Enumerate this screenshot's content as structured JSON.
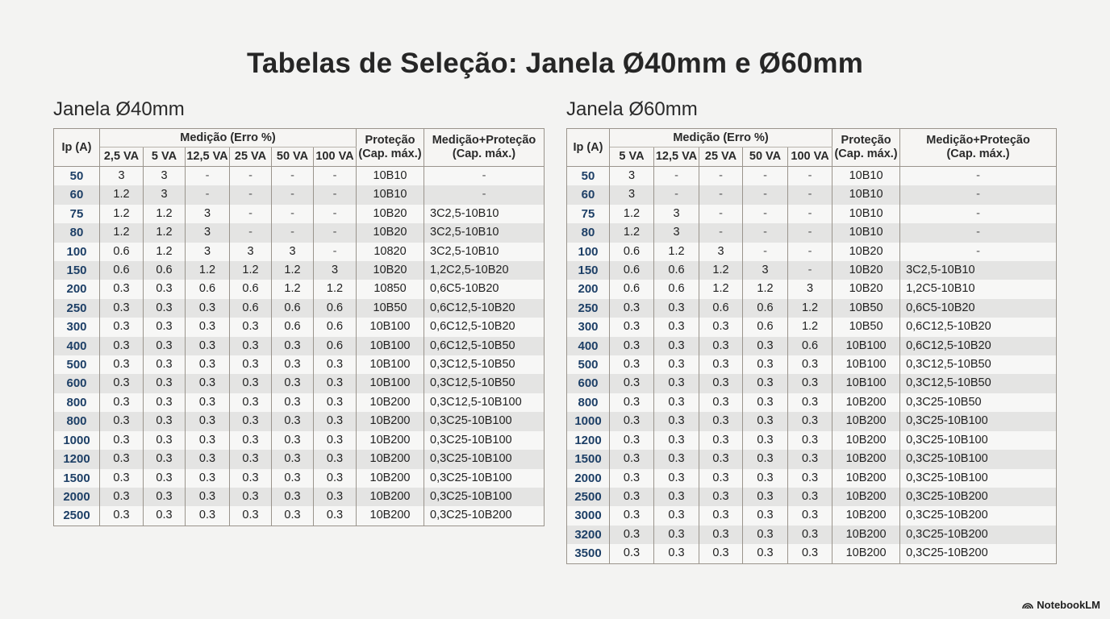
{
  "page": {
    "title": "Tabelas de Seleção: Janela Ø40mm e Ø60mm"
  },
  "brand": {
    "label": "NotebookLM",
    "icon": "notebooklm-logo-icon"
  },
  "tables": [
    {
      "heading": "Janela Ø40mm",
      "header": {
        "ip": "Ip (A)",
        "group": "Medição (Erro %)",
        "protecao_line1": "Proteção",
        "protecao_line2": "(Cap. máx.)",
        "medprot_line1": "Medição+Proteção",
        "medprot_line2": "(Cap. máx.)",
        "va_columns": [
          "2,5 VA",
          "5 VA",
          "12,5 VA",
          "25 VA",
          "50 VA",
          "100 VA"
        ]
      },
      "rows": [
        {
          "ip": "50",
          "va": [
            "3",
            "3",
            "-",
            "-",
            "-",
            "-"
          ],
          "protecao": "10B10",
          "medprot": "-"
        },
        {
          "ip": "60",
          "va": [
            "1.2",
            "3",
            "-",
            "-",
            "-",
            "-"
          ],
          "protecao": "10B10",
          "medprot": "-"
        },
        {
          "ip": "75",
          "va": [
            "1.2",
            "1.2",
            "3",
            "-",
            "-",
            "-"
          ],
          "protecao": "10B20",
          "medprot": "3C2,5-10B10"
        },
        {
          "ip": "80",
          "va": [
            "1.2",
            "1.2",
            "3",
            "-",
            "-",
            "-"
          ],
          "protecao": "10B20",
          "medprot": "3C2,5-10B10"
        },
        {
          "ip": "100",
          "va": [
            "0.6",
            "1.2",
            "3",
            "3",
            "3",
            "-"
          ],
          "protecao": "10820",
          "medprot": "3C2,5-10B10"
        },
        {
          "ip": "150",
          "va": [
            "0.6",
            "0.6",
            "1.2",
            "1.2",
            "1.2",
            "3"
          ],
          "protecao": "10B20",
          "medprot": "1,2C2,5-10B20"
        },
        {
          "ip": "200",
          "va": [
            "0.3",
            "0.3",
            "0.6",
            "0.6",
            "1.2",
            "1.2"
          ],
          "protecao": "10850",
          "medprot": "0,6C5-10B20"
        },
        {
          "ip": "250",
          "va": [
            "0.3",
            "0.3",
            "0.3",
            "0.6",
            "0.6",
            "0.6"
          ],
          "protecao": "10B50",
          "medprot": "0,6C12,5-10B20"
        },
        {
          "ip": "300",
          "va": [
            "0.3",
            "0.3",
            "0.3",
            "0.3",
            "0.6",
            "0.6"
          ],
          "protecao": "10B100",
          "medprot": "0,6C12,5-10B20"
        },
        {
          "ip": "400",
          "va": [
            "0.3",
            "0.3",
            "0.3",
            "0.3",
            "0.3",
            "0.6"
          ],
          "protecao": "10B100",
          "medprot": "0,6C12,5-10B50"
        },
        {
          "ip": "500",
          "va": [
            "0.3",
            "0.3",
            "0.3",
            "0.3",
            "0.3",
            "0.3"
          ],
          "protecao": "10B100",
          "medprot": "0,3C12,5-10B50"
        },
        {
          "ip": "600",
          "va": [
            "0.3",
            "0.3",
            "0.3",
            "0.3",
            "0.3",
            "0.3"
          ],
          "protecao": "10B100",
          "medprot": "0,3C12,5-10B50"
        },
        {
          "ip": "800",
          "va": [
            "0.3",
            "0.3",
            "0.3",
            "0.3",
            "0.3",
            "0.3"
          ],
          "protecao": "10B200",
          "medprot": "0,3C12,5-10B100"
        },
        {
          "ip": "800",
          "va": [
            "0.3",
            "0.3",
            "0.3",
            "0.3",
            "0.3",
            "0.3"
          ],
          "protecao": "10B200",
          "medprot": "0,3C25-10B100"
        },
        {
          "ip": "1000",
          "va": [
            "0.3",
            "0.3",
            "0.3",
            "0.3",
            "0.3",
            "0.3"
          ],
          "protecao": "10B200",
          "medprot": "0,3C25-10B100"
        },
        {
          "ip": "1200",
          "va": [
            "0.3",
            "0.3",
            "0.3",
            "0.3",
            "0.3",
            "0.3"
          ],
          "protecao": "10B200",
          "medprot": "0,3C25-10B100"
        },
        {
          "ip": "1500",
          "va": [
            "0.3",
            "0.3",
            "0.3",
            "0.3",
            "0.3",
            "0.3"
          ],
          "protecao": "10B200",
          "medprot": "0,3C25-10B100"
        },
        {
          "ip": "2000",
          "va": [
            "0.3",
            "0.3",
            "0.3",
            "0.3",
            "0.3",
            "0.3"
          ],
          "protecao": "10B200",
          "medprot": "0,3C25-10B100"
        },
        {
          "ip": "2500",
          "va": [
            "0.3",
            "0.3",
            "0.3",
            "0.3",
            "0.3",
            "0.3"
          ],
          "protecao": "10B200",
          "medprot": "0,3C25-10B200"
        }
      ]
    },
    {
      "heading": "Janela Ø60mm",
      "header": {
        "ip": "Ip (A)",
        "group": "Medição (Erro %)",
        "protecao_line1": "Proteção",
        "protecao_line2": "(Cap. máx.)",
        "medprot_line1": "Medição+Proteção",
        "medprot_line2": "(Cap. máx.)",
        "va_columns": [
          "5 VA",
          "12,5 VA",
          "25 VA",
          "50 VA",
          "100 VA"
        ]
      },
      "rows": [
        {
          "ip": "50",
          "va": [
            "3",
            "-",
            "-",
            "-",
            "-"
          ],
          "protecao": "10B10",
          "medprot": "-"
        },
        {
          "ip": "60",
          "va": [
            "3",
            "-",
            "-",
            "-",
            "-"
          ],
          "protecao": "10B10",
          "medprot": "-"
        },
        {
          "ip": "75",
          "va": [
            "1.2",
            "3",
            "-",
            "-",
            "-"
          ],
          "protecao": "10B10",
          "medprot": "-"
        },
        {
          "ip": "80",
          "va": [
            "1.2",
            "3",
            "-",
            "-",
            "-"
          ],
          "protecao": "10B10",
          "medprot": "-"
        },
        {
          "ip": "100",
          "va": [
            "0.6",
            "1.2",
            "3",
            "-",
            "-"
          ],
          "protecao": "10B20",
          "medprot": "-"
        },
        {
          "ip": "150",
          "va": [
            "0.6",
            "0.6",
            "1.2",
            "3",
            "-"
          ],
          "protecao": "10B20",
          "medprot": "3C2,5-10B10"
        },
        {
          "ip": "200",
          "va": [
            "0.6",
            "0.6",
            "1.2",
            "1.2",
            "3"
          ],
          "protecao": "10B20",
          "medprot": "1,2C5-10B10"
        },
        {
          "ip": "250",
          "va": [
            "0.3",
            "0.3",
            "0.6",
            "0.6",
            "1.2"
          ],
          "protecao": "10B50",
          "medprot": "0,6C5-10B20"
        },
        {
          "ip": "300",
          "va": [
            "0.3",
            "0.3",
            "0.3",
            "0.6",
            "1.2"
          ],
          "protecao": "10B50",
          "medprot": "0,6C12,5-10B20"
        },
        {
          "ip": "400",
          "va": [
            "0.3",
            "0.3",
            "0.3",
            "0.3",
            "0.6"
          ],
          "protecao": "10B100",
          "medprot": "0,6C12,5-10B20"
        },
        {
          "ip": "500",
          "va": [
            "0.3",
            "0.3",
            "0.3",
            "0.3",
            "0.3"
          ],
          "protecao": "10B100",
          "medprot": "0,3C12,5-10B50"
        },
        {
          "ip": "600",
          "va": [
            "0.3",
            "0.3",
            "0.3",
            "0.3",
            "0.3"
          ],
          "protecao": "10B100",
          "medprot": "0,3C12,5-10B50"
        },
        {
          "ip": "800",
          "va": [
            "0.3",
            "0.3",
            "0.3",
            "0.3",
            "0.3"
          ],
          "protecao": "10B200",
          "medprot": "0,3C25-10B50"
        },
        {
          "ip": "1000",
          "va": [
            "0.3",
            "0.3",
            "0.3",
            "0.3",
            "0.3"
          ],
          "protecao": "10B200",
          "medprot": "0,3C25-10B100"
        },
        {
          "ip": "1200",
          "va": [
            "0.3",
            "0.3",
            "0.3",
            "0.3",
            "0.3"
          ],
          "protecao": "10B200",
          "medprot": "0,3C25-10B100"
        },
        {
          "ip": "1500",
          "va": [
            "0.3",
            "0.3",
            "0.3",
            "0.3",
            "0.3"
          ],
          "protecao": "10B200",
          "medprot": "0,3C25-10B100"
        },
        {
          "ip": "2000",
          "va": [
            "0.3",
            "0.3",
            "0.3",
            "0.3",
            "0.3"
          ],
          "protecao": "10B200",
          "medprot": "0,3C25-10B100"
        },
        {
          "ip": "2500",
          "va": [
            "0.3",
            "0.3",
            "0.3",
            "0.3",
            "0.3"
          ],
          "protecao": "10B200",
          "medprot": "0,3C25-10B200"
        },
        {
          "ip": "3000",
          "va": [
            "0.3",
            "0.3",
            "0.3",
            "0.3",
            "0.3"
          ],
          "protecao": "10B200",
          "medprot": "0,3C25-10B200"
        },
        {
          "ip": "3200",
          "va": [
            "0.3",
            "0.3",
            "0.3",
            "0.3",
            "0.3"
          ],
          "protecao": "10B200",
          "medprot": "0,3C25-10B200"
        },
        {
          "ip": "3500",
          "va": [
            "0.3",
            "0.3",
            "0.3",
            "0.3",
            "0.3"
          ],
          "protecao": "10B200",
          "medprot": "0,3C25-10B200"
        }
      ]
    }
  ],
  "colors": {
    "background": "#f3f3f2",
    "ip_text": "#1d3f66",
    "border": "#9a948c",
    "row_alt": "#e4e4e3"
  }
}
